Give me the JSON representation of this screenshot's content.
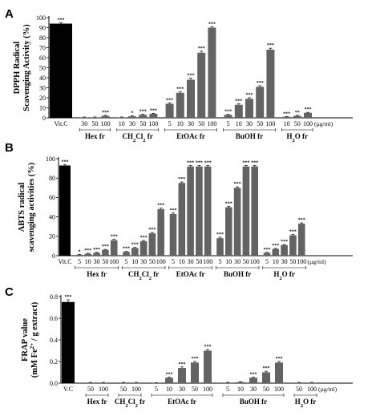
{
  "chart_data": [
    {
      "type": "bar",
      "panel": "A",
      "ylabel_lines": [
        "DPPH Radical",
        "Scavenging Activity (%)"
      ],
      "ylim": [
        0,
        100
      ],
      "yticks": [
        "0",
        "10",
        "20",
        "30",
        "40",
        "50",
        "60",
        "70",
        "80",
        "90",
        "100"
      ],
      "unit_label": "(µg/ml)",
      "categories": [
        "Vit.C",
        "30",
        "50",
        "100",
        "10",
        "30",
        "50",
        "100",
        "5",
        "10",
        "30",
        "50",
        "100",
        "5",
        "10",
        "30",
        "50",
        "100",
        "10",
        "50",
        "100"
      ],
      "values": [
        94,
        0.5,
        0.5,
        2,
        0.5,
        1.5,
        3,
        4,
        14,
        25,
        38,
        65,
        90,
        3,
        13,
        19,
        31,
        68,
        1,
        2,
        5
      ],
      "errors": [
        1,
        0.3,
        0.3,
        0.5,
        0.3,
        0.5,
        0.5,
        0.5,
        1,
        1,
        1.5,
        1.5,
        1,
        0.5,
        1,
        1,
        1,
        1.5,
        0.3,
        0.5,
        0.5
      ],
      "significance": [
        "***",
        "",
        "",
        "***",
        "",
        "*",
        "***",
        "***",
        "***",
        "***",
        "***",
        "***",
        "***",
        "***",
        "***",
        "***",
        "***",
        "***",
        "***",
        "**",
        "***"
      ],
      "groups": [
        {
          "label_parts": [
            {
              "text": "Hex fr"
            }
          ],
          "range": [
            1,
            3
          ]
        },
        {
          "label_parts": [
            {
              "text": "CH"
            },
            {
              "text": "2",
              "sub": true
            },
            {
              "text": "Cl"
            },
            {
              "text": "2",
              "sub": true
            },
            {
              "text": " fr"
            }
          ],
          "range": [
            4,
            7
          ]
        },
        {
          "label_parts": [
            {
              "text": "EtOAc fr"
            }
          ],
          "range": [
            8,
            12
          ]
        },
        {
          "label_parts": [
            {
              "text": "BuOH fr"
            }
          ],
          "range": [
            13,
            17
          ]
        },
        {
          "label_parts": [
            {
              "text": "H"
            },
            {
              "text": "2",
              "sub": true
            },
            {
              "text": "O fr"
            }
          ],
          "range": [
            18,
            20
          ]
        }
      ]
    },
    {
      "type": "bar",
      "panel": "B",
      "ylabel_lines": [
        "ABTS radical",
        "scavenging activities (%)"
      ],
      "ylim": [
        0,
        100
      ],
      "yticks": [
        "0",
        "20",
        "40",
        "60",
        "80",
        "100"
      ],
      "unit_label": "(µg/ml)",
      "categories": [
        "Vit.C",
        "5",
        "10",
        "30",
        "50",
        "100",
        "5",
        "10",
        "30",
        "50",
        "100",
        "5",
        "10",
        "30",
        "50",
        "100",
        "5",
        "10",
        "30",
        "50",
        "100",
        "5",
        "10",
        "30",
        "50",
        "100"
      ],
      "values": [
        93,
        1,
        2,
        3,
        6,
        16,
        4,
        8,
        15,
        23,
        48,
        43,
        75,
        92,
        92,
        92,
        18,
        50,
        70,
        92,
        92,
        3,
        7,
        11,
        21,
        33
      ],
      "errors": [
        1,
        0.3,
        0.5,
        0.5,
        0.5,
        0.8,
        0.5,
        0.5,
        0.8,
        0.8,
        1,
        1,
        1,
        1,
        1,
        1,
        1,
        1,
        1,
        1,
        1,
        0.5,
        0.5,
        0.5,
        0.8,
        0.8
      ],
      "significance": [
        "***",
        "*",
        "***",
        "***",
        "***",
        "***",
        "***",
        "***",
        "***",
        "***",
        "***",
        "***",
        "***",
        "***",
        "***",
        "***",
        "***",
        "***",
        "***",
        "***",
        "***",
        "***",
        "***",
        "***",
        "***",
        "***"
      ],
      "groups": [
        {
          "label_parts": [
            {
              "text": "Hex fr"
            }
          ],
          "range": [
            1,
            5
          ]
        },
        {
          "label_parts": [
            {
              "text": "CH"
            },
            {
              "text": "2",
              "sub": true
            },
            {
              "text": "Cl"
            },
            {
              "text": "2",
              "sub": true
            },
            {
              "text": " fr"
            }
          ],
          "range": [
            6,
            10
          ]
        },
        {
          "label_parts": [
            {
              "text": "EtOAc fr"
            }
          ],
          "range": [
            11,
            15
          ]
        },
        {
          "label_parts": [
            {
              "text": "BuOH fr"
            }
          ],
          "range": [
            16,
            20
          ]
        },
        {
          "label_parts": [
            {
              "text": "H"
            },
            {
              "text": "2",
              "sub": true
            },
            {
              "text": "O fr"
            }
          ],
          "range": [
            21,
            25
          ]
        }
      ]
    },
    {
      "type": "bar",
      "panel": "C",
      "ylabel_lines": [
        "FRAP value",
        "(mM Fe2+ / g extract)"
      ],
      "ylim": [
        0,
        0.8
      ],
      "yticks": [
        "0.0",
        "0.2",
        "0.4",
        "0.6",
        "0.8"
      ],
      "unit_label": "(µg/ml)",
      "categories": [
        "V.C",
        "50",
        "100",
        "50",
        "100",
        "5",
        "10",
        "30",
        "50",
        "100",
        "5",
        "10",
        "30",
        "50",
        "100",
        "50",
        "100"
      ],
      "values": [
        0.75,
        0.005,
        0.005,
        0.005,
        0.005,
        0.002,
        0.05,
        0.14,
        0.19,
        0.3,
        0.005,
        0.01,
        0.05,
        0.1,
        0.19,
        0.005,
        0.005
      ],
      "errors": [
        0.02,
        0.002,
        0.002,
        0.002,
        0.002,
        0.001,
        0.005,
        0.01,
        0.01,
        0.01,
        0.002,
        0.003,
        0.005,
        0.01,
        0.01,
        0.002,
        0.002
      ],
      "significance": [
        "***",
        "",
        "",
        "",
        "",
        "",
        "***",
        "***",
        "***",
        "***",
        "",
        "",
        "***",
        "***",
        "***",
        "",
        ""
      ],
      "groups": [
        {
          "label_parts": [
            {
              "text": "Hex fr"
            }
          ],
          "range": [
            1,
            2
          ]
        },
        {
          "label_parts": [
            {
              "text": "CH"
            },
            {
              "text": "2",
              "sub": true
            },
            {
              "text": "Cl"
            },
            {
              "text": "2",
              "sub": true
            },
            {
              "text": " fr"
            }
          ],
          "range": [
            3,
            4
          ]
        },
        {
          "label_parts": [
            {
              "text": "EtOAc fr"
            }
          ],
          "range": [
            5,
            9
          ]
        },
        {
          "label_parts": [
            {
              "text": "BuOH fr"
            }
          ],
          "range": [
            10,
            14
          ]
        },
        {
          "label_parts": [
            {
              "text": "H"
            },
            {
              "text": "2",
              "sub": true
            },
            {
              "text": "O fr"
            }
          ],
          "range": [
            15,
            16
          ]
        }
      ]
    }
  ],
  "colors": {
    "control_bar": "#000000",
    "sample_bar": "#636363",
    "axis": "#000000"
  }
}
